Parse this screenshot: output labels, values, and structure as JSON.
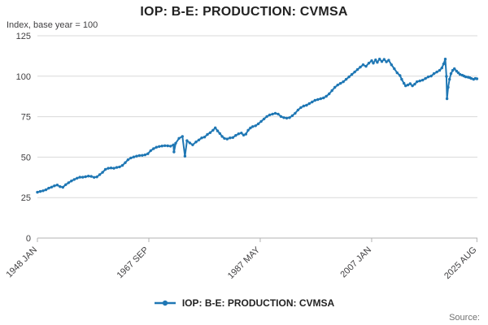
{
  "header": {
    "title": "IOP: B-E: PRODUCTION: CVMSA",
    "axis_note": "Index, base year = 100"
  },
  "legend": {
    "series_label": "IOP: B-E: PRODUCTION: CVMSA"
  },
  "footer": {
    "source_label": "Source:"
  },
  "chart_data": {
    "type": "line",
    "title": "IOP: B-E: PRODUCTION: CVMSA",
    "ylabel": "Index, base year = 100",
    "xlabel": "",
    "ylim": [
      0,
      125
    ],
    "yticks": [
      0,
      25,
      50,
      75,
      100,
      125
    ],
    "xlim": [
      1948.0,
      2025.67
    ],
    "xticks": [
      {
        "pos": 1948.0,
        "label": "1948 JAN"
      },
      {
        "pos": 1967.67,
        "label": "1967 SEP"
      },
      {
        "pos": 1987.33,
        "label": "1987 MAY"
      },
      {
        "pos": 2007.0,
        "label": "2007 JAN"
      },
      {
        "pos": 2025.58,
        "label": "2025 AUG"
      }
    ],
    "grid": "horizontal",
    "legend_position": "bottom",
    "line_color": "#1f77b4",
    "marker": "circle",
    "series": [
      {
        "name": "IOP: B-E: PRODUCTION: CVMSA",
        "x_unit": "decimal_year",
        "points": [
          [
            1948.0,
            28.3
          ],
          [
            1948.5,
            28.8
          ],
          [
            1949.0,
            29.2
          ],
          [
            1949.5,
            29.8
          ],
          [
            1950.0,
            30.8
          ],
          [
            1950.5,
            31.5
          ],
          [
            1951.0,
            32.3
          ],
          [
            1951.5,
            32.8
          ],
          [
            1952.0,
            31.8
          ],
          [
            1952.5,
            31.4
          ],
          [
            1953.0,
            33.0
          ],
          [
            1953.5,
            34.2
          ],
          [
            1954.0,
            35.3
          ],
          [
            1954.5,
            36.2
          ],
          [
            1955.0,
            37.0
          ],
          [
            1955.5,
            37.6
          ],
          [
            1956.0,
            37.6
          ],
          [
            1956.5,
            37.9
          ],
          [
            1957.0,
            38.3
          ],
          [
            1957.5,
            38.1
          ],
          [
            1958.0,
            37.5
          ],
          [
            1958.5,
            37.8
          ],
          [
            1959.0,
            39.2
          ],
          [
            1959.5,
            40.6
          ],
          [
            1960.0,
            42.4
          ],
          [
            1960.5,
            43.1
          ],
          [
            1961.0,
            43.3
          ],
          [
            1961.5,
            43.1
          ],
          [
            1962.0,
            43.6
          ],
          [
            1962.5,
            44.0
          ],
          [
            1963.0,
            44.9
          ],
          [
            1963.5,
            46.6
          ],
          [
            1964.0,
            48.4
          ],
          [
            1964.5,
            49.5
          ],
          [
            1965.0,
            50.1
          ],
          [
            1965.5,
            50.6
          ],
          [
            1966.0,
            51.0
          ],
          [
            1966.5,
            51.1
          ],
          [
            1967.0,
            51.4
          ],
          [
            1967.5,
            52.1
          ],
          [
            1968.0,
            54.0
          ],
          [
            1968.5,
            55.2
          ],
          [
            1969.0,
            56.1
          ],
          [
            1969.5,
            56.6
          ],
          [
            1970.0,
            56.9
          ],
          [
            1970.5,
            57.1
          ],
          [
            1971.0,
            57.0
          ],
          [
            1971.5,
            56.8
          ],
          [
            1972.0,
            57.6
          ],
          [
            1972.1,
            53.2
          ],
          [
            1972.4,
            58.6
          ],
          [
            1973.0,
            61.6
          ],
          [
            1973.6,
            62.8
          ],
          [
            1974.05,
            50.6
          ],
          [
            1974.4,
            60.2
          ],
          [
            1974.9,
            58.8
          ],
          [
            1975.4,
            57.6
          ],
          [
            1976.0,
            59.4
          ],
          [
            1976.5,
            60.6
          ],
          [
            1977.0,
            61.9
          ],
          [
            1977.5,
            62.4
          ],
          [
            1978.0,
            64.0
          ],
          [
            1978.5,
            65.1
          ],
          [
            1979.0,
            66.6
          ],
          [
            1979.4,
            68.1
          ],
          [
            1979.8,
            66.2
          ],
          [
            1980.2,
            64.6
          ],
          [
            1980.6,
            62.8
          ],
          [
            1981.0,
            61.6
          ],
          [
            1981.5,
            61.2
          ],
          [
            1982.0,
            61.9
          ],
          [
            1982.5,
            62.1
          ],
          [
            1983.0,
            63.4
          ],
          [
            1983.5,
            64.4
          ],
          [
            1984.0,
            64.9
          ],
          [
            1984.4,
            63.6
          ],
          [
            1984.8,
            64.2
          ],
          [
            1985.2,
            66.6
          ],
          [
            1985.6,
            68.0
          ],
          [
            1986.0,
            68.9
          ],
          [
            1986.5,
            69.4
          ],
          [
            1987.0,
            70.6
          ],
          [
            1987.5,
            72.1
          ],
          [
            1988.0,
            73.6
          ],
          [
            1988.5,
            75.1
          ],
          [
            1989.0,
            76.1
          ],
          [
            1989.5,
            76.6
          ],
          [
            1990.0,
            77.1
          ],
          [
            1990.5,
            76.6
          ],
          [
            1991.0,
            75.1
          ],
          [
            1991.5,
            74.4
          ],
          [
            1992.0,
            74.1
          ],
          [
            1992.5,
            74.4
          ],
          [
            1993.0,
            75.6
          ],
          [
            1993.5,
            77.1
          ],
          [
            1994.0,
            79.1
          ],
          [
            1994.5,
            80.6
          ],
          [
            1995.0,
            81.6
          ],
          [
            1995.5,
            82.1
          ],
          [
            1996.0,
            83.1
          ],
          [
            1996.5,
            84.1
          ],
          [
            1997.0,
            85.1
          ],
          [
            1997.5,
            85.6
          ],
          [
            1998.0,
            86.1
          ],
          [
            1998.5,
            86.6
          ],
          [
            1999.0,
            87.6
          ],
          [
            1999.5,
            89.1
          ],
          [
            2000.0,
            91.1
          ],
          [
            2000.5,
            93.1
          ],
          [
            2001.0,
            94.6
          ],
          [
            2001.5,
            95.6
          ],
          [
            2002.0,
            96.6
          ],
          [
            2002.5,
            98.1
          ],
          [
            2003.0,
            99.6
          ],
          [
            2003.5,
            101.1
          ],
          [
            2004.0,
            102.6
          ],
          [
            2004.5,
            104.1
          ],
          [
            2005.0,
            105.6
          ],
          [
            2005.5,
            107.1
          ],
          [
            2006.0,
            106.1
          ],
          [
            2006.5,
            108.1
          ],
          [
            2007.0,
            109.6
          ],
          [
            2007.3,
            108.1
          ],
          [
            2007.7,
            110.1
          ],
          [
            2008.0,
            108.6
          ],
          [
            2008.4,
            110.6
          ],
          [
            2008.8,
            109.1
          ],
          [
            2009.2,
            110.4
          ],
          [
            2009.6,
            108.9
          ],
          [
            2010.0,
            109.9
          ],
          [
            2010.5,
            107.1
          ],
          [
            2011.0,
            104.6
          ],
          [
            2011.5,
            102.1
          ],
          [
            2012.0,
            100.4
          ],
          [
            2012.3,
            98.1
          ],
          [
            2012.7,
            95.6
          ],
          [
            2013.0,
            94.1
          ],
          [
            2013.4,
            94.6
          ],
          [
            2013.8,
            95.4
          ],
          [
            2014.2,
            94.1
          ],
          [
            2014.6,
            95.1
          ],
          [
            2015.0,
            96.6
          ],
          [
            2015.5,
            97.1
          ],
          [
            2016.0,
            97.6
          ],
          [
            2016.5,
            98.6
          ],
          [
            2017.0,
            99.6
          ],
          [
            2017.5,
            100.1
          ],
          [
            2018.0,
            101.6
          ],
          [
            2018.5,
            102.6
          ],
          [
            2019.0,
            103.6
          ],
          [
            2019.4,
            105.1
          ],
          [
            2019.7,
            107.6
          ],
          [
            2020.0,
            110.6
          ],
          [
            2020.2,
            99.9
          ],
          [
            2020.3,
            86.1
          ],
          [
            2020.5,
            93.1
          ],
          [
            2020.75,
            98.1
          ],
          [
            2021.0,
            101.6
          ],
          [
            2021.3,
            103.6
          ],
          [
            2021.6,
            104.6
          ],
          [
            2022.0,
            103.1
          ],
          [
            2022.3,
            102.1
          ],
          [
            2022.6,
            101.1
          ],
          [
            2023.0,
            100.6
          ],
          [
            2023.3,
            100.1
          ],
          [
            2023.6,
            99.6
          ],
          [
            2024.0,
            99.4
          ],
          [
            2024.3,
            99.1
          ],
          [
            2024.6,
            98.6
          ],
          [
            2025.0,
            98.1
          ],
          [
            2025.3,
            98.6
          ],
          [
            2025.58,
            98.4
          ]
        ]
      }
    ]
  }
}
